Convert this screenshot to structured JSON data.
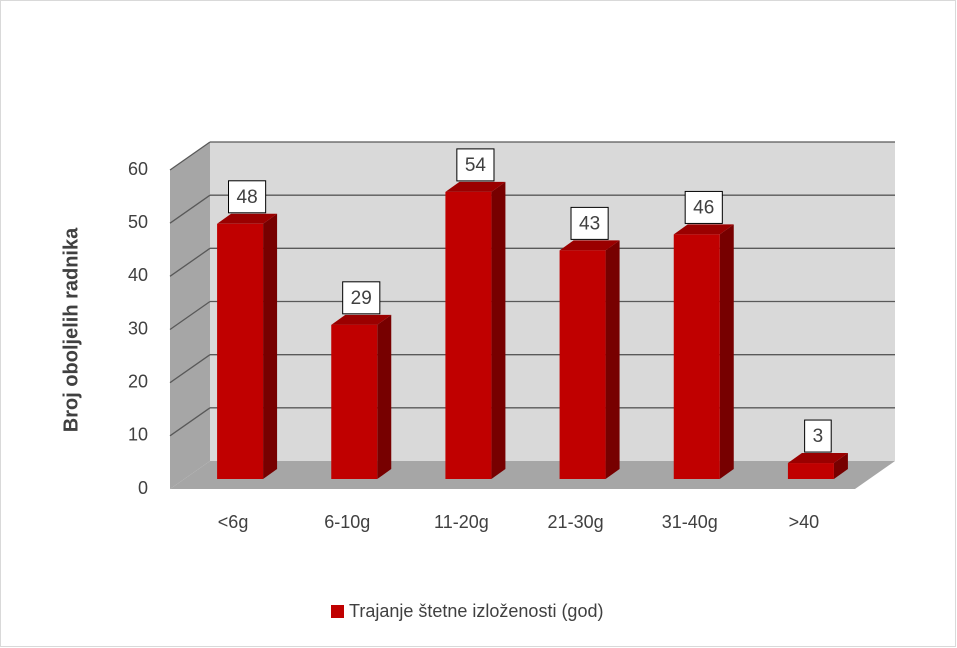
{
  "chart_data": {
    "type": "bar3d",
    "ylabel": "Broj oboljelih radnika",
    "categories": [
      "<6g",
      "6-10g",
      "11-20g",
      "21-30g",
      "31-40g",
      ">40"
    ],
    "series": [
      {
        "name": "Trajanje štetne izloženosti (god)",
        "color": "#c00000",
        "values": [
          48,
          29,
          54,
          43,
          46,
          3
        ]
      }
    ],
    "ylim": [
      0,
      60
    ],
    "yticks": [
      0,
      10,
      20,
      30,
      40,
      50,
      60
    ],
    "grid": true,
    "legend": "bottom"
  }
}
